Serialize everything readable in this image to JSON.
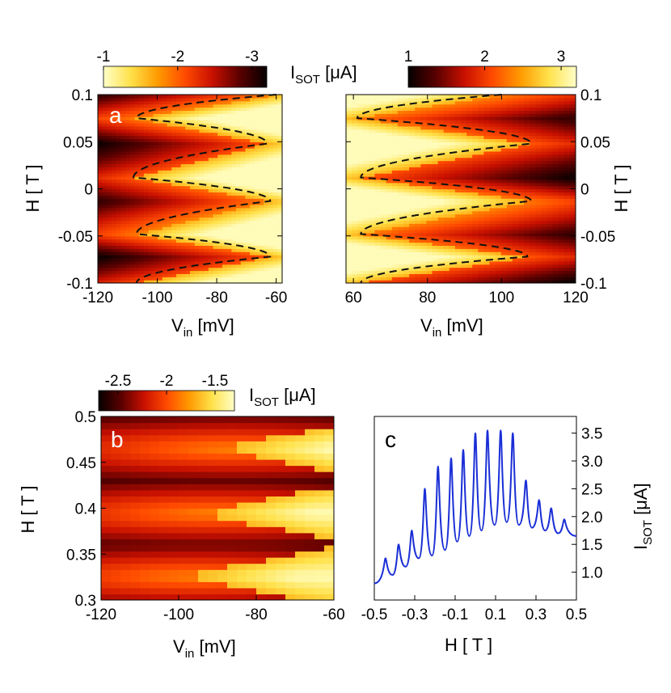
{
  "colors": {
    "hot_stops": [
      "#050000",
      "#5a0000",
      "#c81000",
      "#ff4a00",
      "#ff9a00",
      "#ffe14a",
      "#ffffc8"
    ],
    "line_c": "#1a2fd6",
    "dash": "#111111"
  },
  "chart_data": [
    {
      "id": "a-left",
      "type": "heatmap",
      "panel_label": "a",
      "xlabel": "V",
      "xlabel_sub": "in",
      "xlabel_unit": " [mV]",
      "ylabel": "H [ T ]",
      "xlim": [
        -120,
        -58
      ],
      "ylim": [
        -0.1,
        0.1
      ],
      "xticks": [
        -120,
        -100,
        -80,
        -60
      ],
      "yticks": [
        -0.1,
        -0.05,
        0,
        0.05,
        0.1
      ],
      "ytick_labels": [
        "-0.1",
        "-0.05",
        "0",
        "0.05",
        "0.1"
      ],
      "colorbar": {
        "range": [
          -3.2,
          -1
        ],
        "ticks": [
          -3,
          -2,
          -1
        ],
        "tick_labels": [
          "-3",
          "-2",
          "-1"
        ]
      },
      "dashed_boundary_H": [
        0.1,
        0.075,
        0.048,
        0.012,
        -0.013,
        -0.048,
        -0.072,
        -0.1
      ],
      "dashed_boundary_V": [
        -60,
        -107,
        -63,
        -108,
        -62,
        -107,
        -62,
        -107
      ]
    },
    {
      "id": "a-right",
      "type": "heatmap",
      "xlabel": "V",
      "xlabel_sub": "in",
      "xlabel_unit": " [mV]",
      "ylabel": "H [ T ]",
      "xlim": [
        58,
        120
      ],
      "ylim": [
        -0.1,
        0.1
      ],
      "xticks": [
        60,
        80,
        100,
        120
      ],
      "yticks": [
        -0.1,
        -0.05,
        0,
        0.05,
        0.1
      ],
      "ytick_labels": [
        "-0.1",
        "-0.05",
        "0",
        "0.05",
        "0.1"
      ],
      "colorbar": {
        "range": [
          1,
          3.2
        ],
        "ticks": [
          1,
          2,
          3
        ],
        "tick_labels": [
          "1",
          "2",
          "3"
        ]
      },
      "colorbar_label": "I",
      "colorbar_label_sub": "SOT",
      "colorbar_label_unit": " [μA]",
      "dashed_boundary_H": [
        0.1,
        0.075,
        0.048,
        0.012,
        -0.013,
        -0.048,
        -0.072,
        -0.1
      ],
      "dashed_boundary_V": [
        100,
        61,
        108,
        62,
        108,
        62,
        107,
        62
      ]
    },
    {
      "id": "b",
      "type": "heatmap",
      "panel_label": "b",
      "xlabel": "V",
      "xlabel_sub": "in",
      "xlabel_unit": " [mV]",
      "ylabel": "H [ T ]",
      "xlim": [
        -120,
        -60
      ],
      "ylim": [
        0.3,
        0.5
      ],
      "xticks": [
        -120,
        -100,
        -80,
        -60
      ],
      "yticks": [
        0.3,
        0.35,
        0.4,
        0.45,
        0.5
      ],
      "ytick_labels": [
        "0.3",
        "0.35",
        "0.4",
        "0.45",
        "0.5"
      ],
      "colorbar": {
        "range": [
          -2.7,
          -1.3
        ],
        "ticks": [
          -2.5,
          -2,
          -1.5
        ],
        "tick_labels": [
          "-2.5",
          "-2",
          "-1.5"
        ]
      },
      "colorbar_label": "I",
      "colorbar_label_sub": "SOT",
      "colorbar_label_unit": " [μA]"
    },
    {
      "id": "c",
      "type": "line",
      "panel_label": "c",
      "xlabel": "H [ T ]",
      "ylabel": "I",
      "ylabel_sub": "SOT",
      "ylabel_unit": " [μA]",
      "xlim": [
        -0.5,
        0.5
      ],
      "ylim": [
        0.5,
        3.8
      ],
      "xticks": [
        -0.5,
        -0.3,
        -0.1,
        0.1,
        0.3,
        0.5
      ],
      "xtick_labels": [
        "-0.5",
        "-0.3",
        "-0.1",
        "0.1",
        "0.3",
        "0.5"
      ],
      "yticks": [
        1.0,
        1.5,
        2.0,
        2.5,
        3.0,
        3.5
      ],
      "ytick_labels": [
        "1.0",
        "1.5",
        "2.0",
        "2.5",
        "3.0",
        "3.5"
      ],
      "peaks_H": [
        -0.445,
        -0.38,
        -0.315,
        -0.25,
        -0.185,
        -0.12,
        -0.06,
        0.0,
        0.06,
        0.125,
        0.185,
        0.25,
        0.315,
        0.375,
        0.44
      ],
      "peaks_I": [
        1.25,
        1.5,
        1.75,
        2.5,
        2.9,
        3.05,
        3.2,
        3.5,
        3.55,
        3.55,
        3.5,
        2.65,
        2.3,
        2.15,
        1.95
      ],
      "valleys_H": [
        -0.5,
        -0.41,
        -0.345,
        -0.28,
        -0.215,
        -0.15,
        -0.09,
        -0.03,
        0.03,
        0.095,
        0.155,
        0.215,
        0.28,
        0.345,
        0.41,
        0.5
      ],
      "valleys_I": [
        0.8,
        0.95,
        1.1,
        1.25,
        1.3,
        1.4,
        1.55,
        1.65,
        1.75,
        1.85,
        1.9,
        1.85,
        1.8,
        1.75,
        1.7,
        1.65
      ]
    }
  ]
}
